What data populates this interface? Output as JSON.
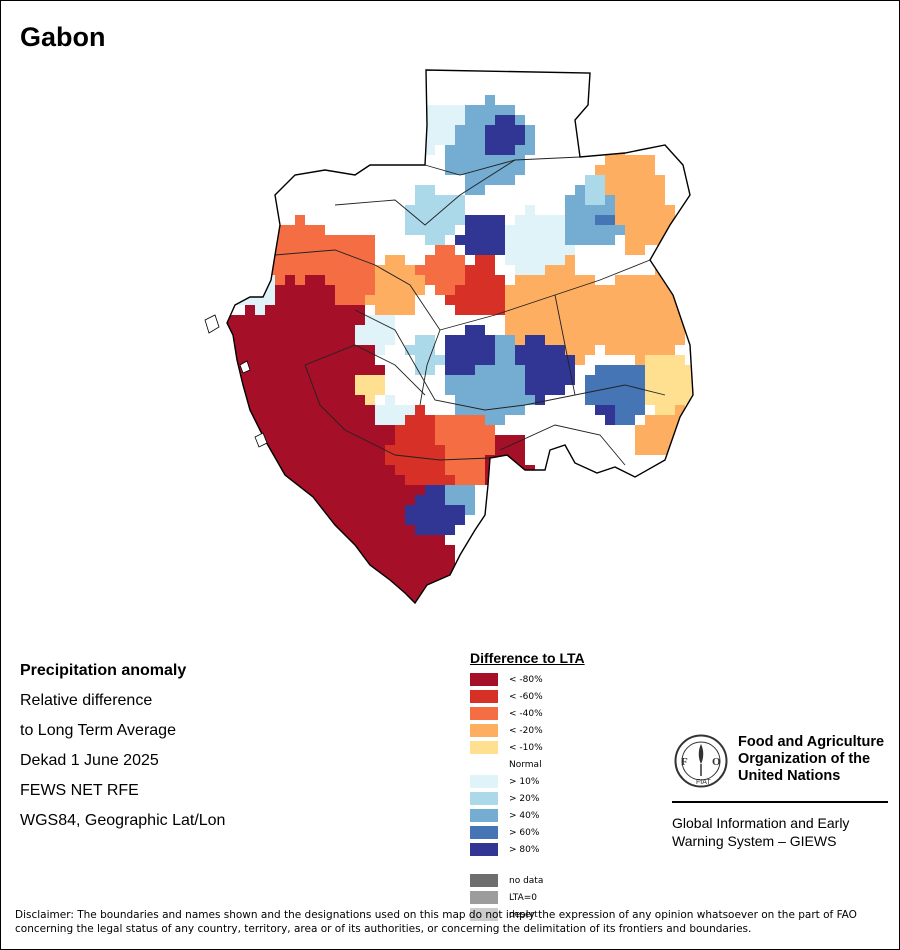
{
  "map": {
    "title": "Gabon",
    "info": {
      "heading": "Precipitation anomaly",
      "line1": "Relative difference",
      "line2": "to Long Term Average",
      "period": "Dekad 1 June 2025",
      "source": "FEWS NET RFE",
      "projection": "WGS84, Geographic Lat/Lon"
    }
  },
  "legend": {
    "title": "Difference to LTA",
    "dry_classes": [
      {
        "label": "< -80%",
        "color": "#a50f27"
      },
      {
        "label": "< -60%",
        "color": "#d73027"
      },
      {
        "label": "< -40%",
        "color": "#f46d43"
      },
      {
        "label": "< -20%",
        "color": "#fdae61"
      },
      {
        "label": "< -10%",
        "color": "#fee090"
      }
    ],
    "normal_label": "Normal",
    "wet_classes": [
      {
        "label": "> 10%",
        "color": "#e0f3f8"
      },
      {
        "label": "> 20%",
        "color": "#abd9e9"
      },
      {
        "label": "> 40%",
        "color": "#74add1"
      },
      {
        "label": "> 60%",
        "color": "#4575b4"
      },
      {
        "label": "> 80%",
        "color": "#313695"
      }
    ],
    "other_classes": [
      {
        "label": "no data",
        "color": "#6e6e6e"
      },
      {
        "label": "LTA=0",
        "color": "#9c9c9c"
      },
      {
        "label": "desert",
        "color": "#cccccc"
      }
    ]
  },
  "branding": {
    "logo_text": "FAO",
    "logo_motto": "FIAT PANIS",
    "org_line1": "Food and Agriculture",
    "org_line2": "Organization of the",
    "org_line3": "United Nations",
    "system_line1": "Global Information and Early",
    "system_line2": "Warning System – GIEWS"
  },
  "disclaimer": {
    "line1": "Disclaimer: The boundaries and names shown and the designations used on this map do not imply the expression of any opinion whatsoever on the part of FAO",
    "line2": "concerning the legal status of any country, territory, area or of its authorities, or concerning the delimitation of its frontiers and boundaries."
  }
}
